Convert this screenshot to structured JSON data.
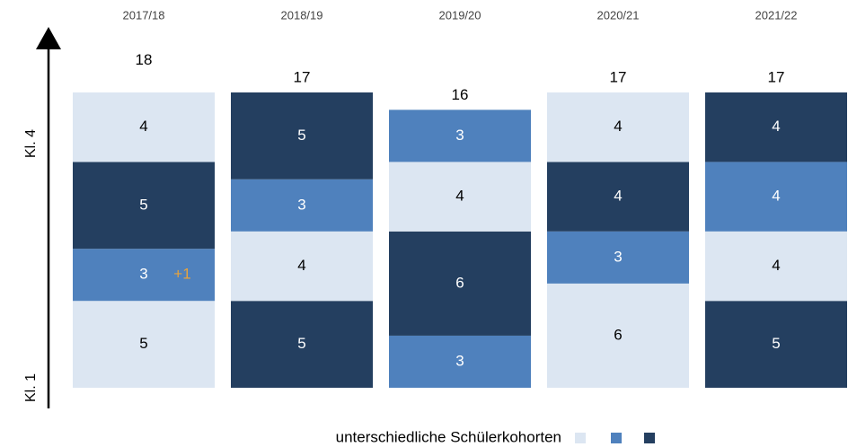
{
  "chart_data": {
    "type": "stacked-bar",
    "categories": [
      "2017/18",
      "2018/19",
      "2019/20",
      "2020/21",
      "2021/22"
    ],
    "totals": [
      18,
      17,
      16,
      17,
      17
    ],
    "stacks": [
      [
        {
          "value": 5,
          "color": "#dce6f2"
        },
        {
          "value": 3,
          "color": "#4f81bd"
        },
        {
          "value": 5,
          "color": "#243f60"
        },
        {
          "value": 4,
          "color": "#dce6f2"
        }
      ],
      [
        {
          "value": 5,
          "color": "#243f60"
        },
        {
          "value": 4,
          "color": "#dce6f2"
        },
        {
          "value": 3,
          "color": "#4f81bd"
        },
        {
          "value": 5,
          "color": "#243f60"
        }
      ],
      [
        {
          "value": 3,
          "color": "#4f81bd"
        },
        {
          "value": 6,
          "color": "#243f60"
        },
        {
          "value": 4,
          "color": "#dce6f2"
        },
        {
          "value": 3,
          "color": "#4f81bd"
        }
      ],
      [
        {
          "value": 6,
          "color": "#dce6f2"
        },
        {
          "value": 3,
          "color": "#4f81bd"
        },
        {
          "value": 4,
          "color": "#243f60"
        },
        {
          "value": 4,
          "color": "#dce6f2"
        }
      ],
      [
        {
          "value": 5,
          "color": "#243f60"
        },
        {
          "value": 4,
          "color": "#dce6f2"
        },
        {
          "value": 4,
          "color": "#4f81bd"
        },
        {
          "value": 4,
          "color": "#243f60"
        }
      ]
    ],
    "annotation": {
      "text": "+1",
      "category": 0,
      "segment": 1,
      "color": "#e8a33c"
    },
    "ylim": [
      0,
      17
    ],
    "y_top_label": "Kl. 4",
    "y_bottom_label": "Kl. 1",
    "legend": {
      "text": "unterschiedliche Schülerkohorten",
      "colors": [
        "#dce6f2",
        "#4f81bd",
        "#243f60"
      ]
    }
  }
}
